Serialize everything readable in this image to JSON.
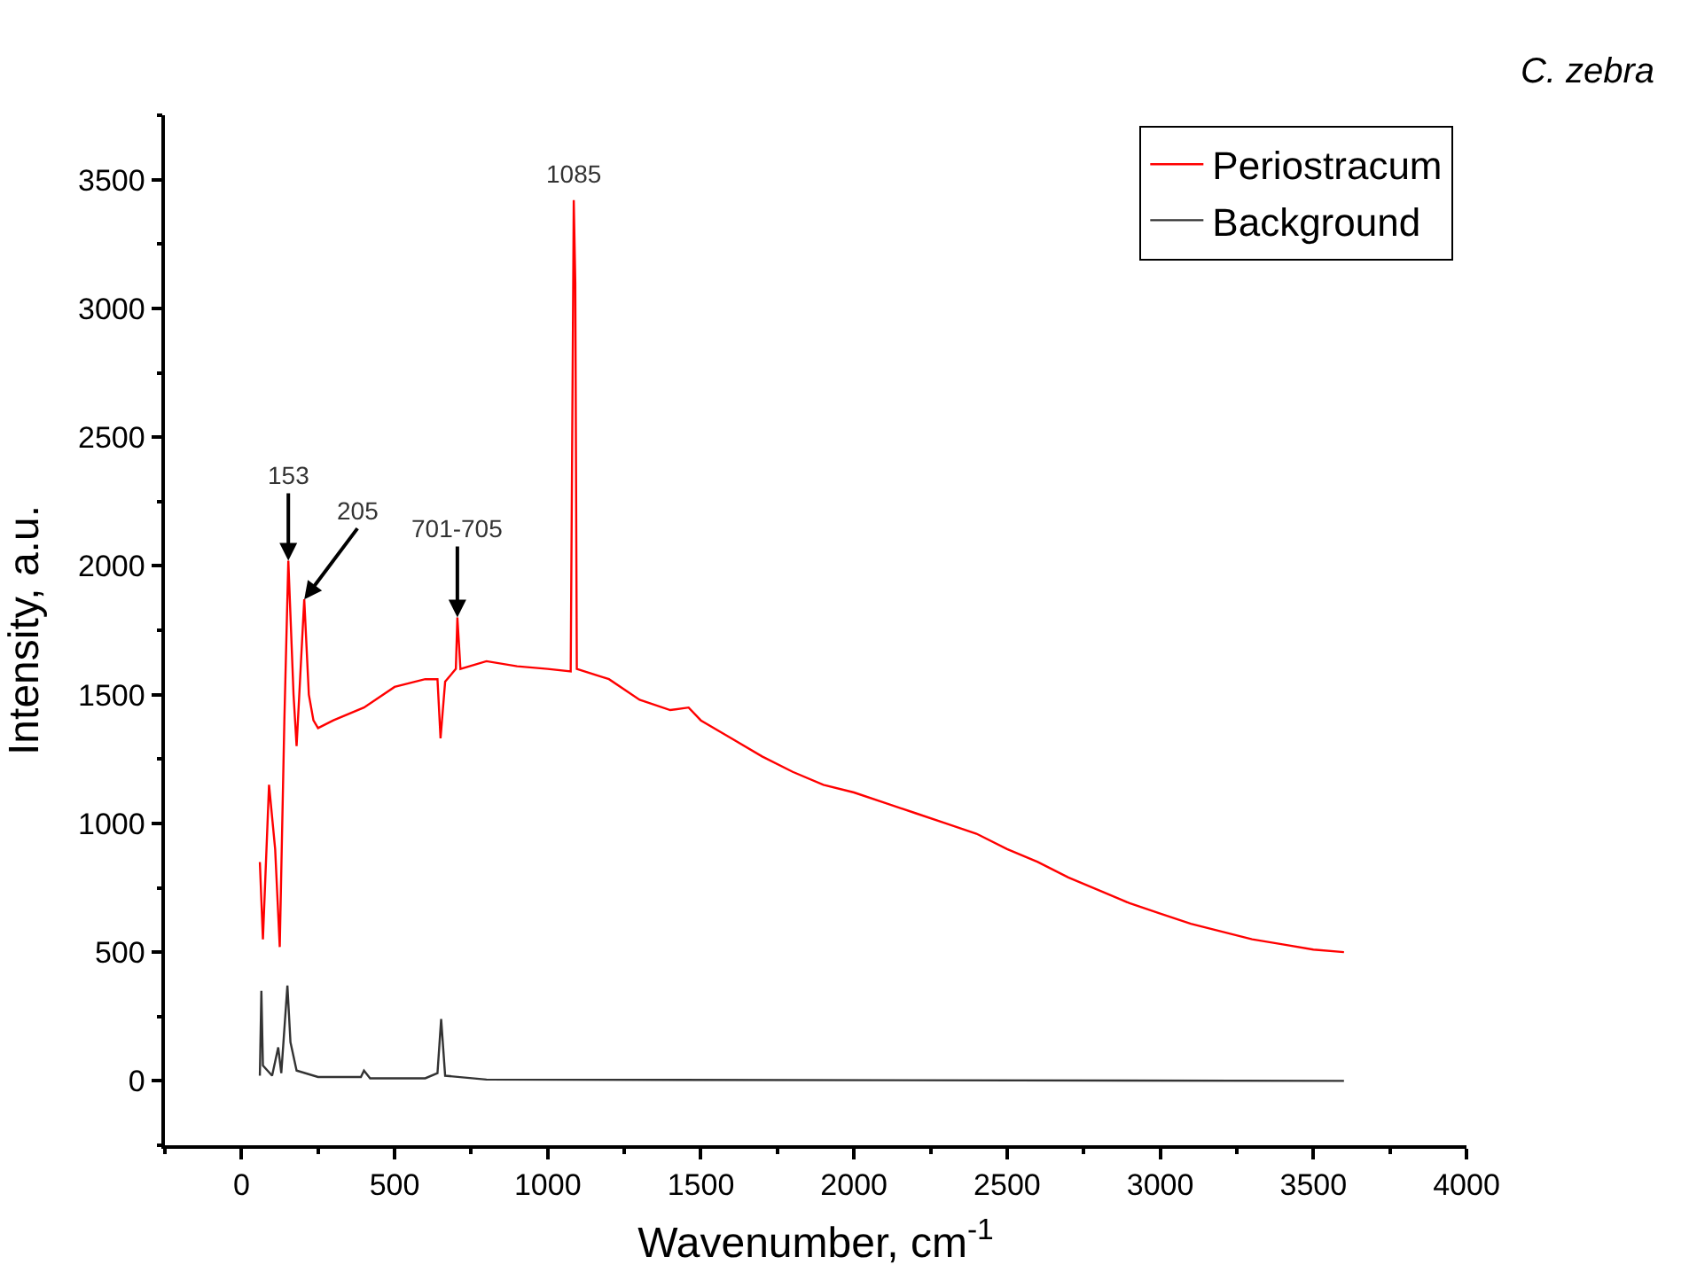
{
  "chart_data": {
    "type": "line",
    "title": "C. zebra",
    "xlabel": "Wavenumber, cm$^{-1}$",
    "ylabel": "Intensity, a.u.",
    "xlim": [
      -250,
      4000
    ],
    "xticks": [
      0,
      500,
      1000,
      1500,
      2000,
      2500,
      3000,
      3500,
      4000
    ],
    "ylim": [
      -250,
      3750
    ],
    "yticks": [
      0,
      500,
      1000,
      1500,
      2000,
      2500,
      3000,
      3500
    ],
    "legend": "top right",
    "marker": "none",
    "line_style": "solid",
    "series": [
      {
        "name": "Periostracum",
        "color": "#ff0000",
        "x": [
          60,
          70,
          90,
          110,
          125,
          140,
          153,
          170,
          180,
          205,
          220,
          235,
          250,
          300,
          400,
          500,
          600,
          640,
          650,
          665,
          700,
          705,
          715,
          800,
          900,
          1000,
          1075,
          1085,
          1090,
          1095,
          1200,
          1300,
          1400,
          1460,
          1500,
          1600,
          1700,
          1800,
          1900,
          2000,
          2100,
          2200,
          2300,
          2400,
          2500,
          2600,
          2700,
          2800,
          2900,
          3000,
          3100,
          3200,
          3300,
          3400,
          3500,
          3600
        ],
        "values": [
          850,
          550,
          1150,
          900,
          520,
          1400,
          2020,
          1500,
          1300,
          1870,
          1500,
          1400,
          1370,
          1400,
          1450,
          1530,
          1560,
          1560,
          1330,
          1550,
          1600,
          1800,
          1600,
          1630,
          1610,
          1600,
          1590,
          3420,
          3100,
          1600,
          1560,
          1480,
          1440,
          1450,
          1400,
          1330,
          1260,
          1200,
          1150,
          1120,
          1080,
          1040,
          1000,
          960,
          900,
          850,
          790,
          740,
          690,
          650,
          610,
          580,
          550,
          530,
          510,
          500
        ]
      },
      {
        "name": "Background",
        "color": "#333333",
        "x": [
          60,
          65,
          70,
          100,
          120,
          130,
          150,
          160,
          180,
          250,
          390,
          400,
          420,
          600,
          640,
          652,
          665,
          800,
          3600
        ],
        "values": [
          20,
          350,
          60,
          20,
          130,
          30,
          370,
          150,
          40,
          15,
          15,
          40,
          10,
          10,
          30,
          240,
          20,
          5,
          0
        ]
      }
    ],
    "annotations": [
      {
        "text": "153",
        "x": 153,
        "y": 2020
      },
      {
        "text": "205",
        "x": 205,
        "y": 1870
      },
      {
        "text": "701-705",
        "x": 705,
        "y": 1800
      },
      {
        "text": "1085",
        "x": 1085,
        "y": 3420
      }
    ]
  }
}
